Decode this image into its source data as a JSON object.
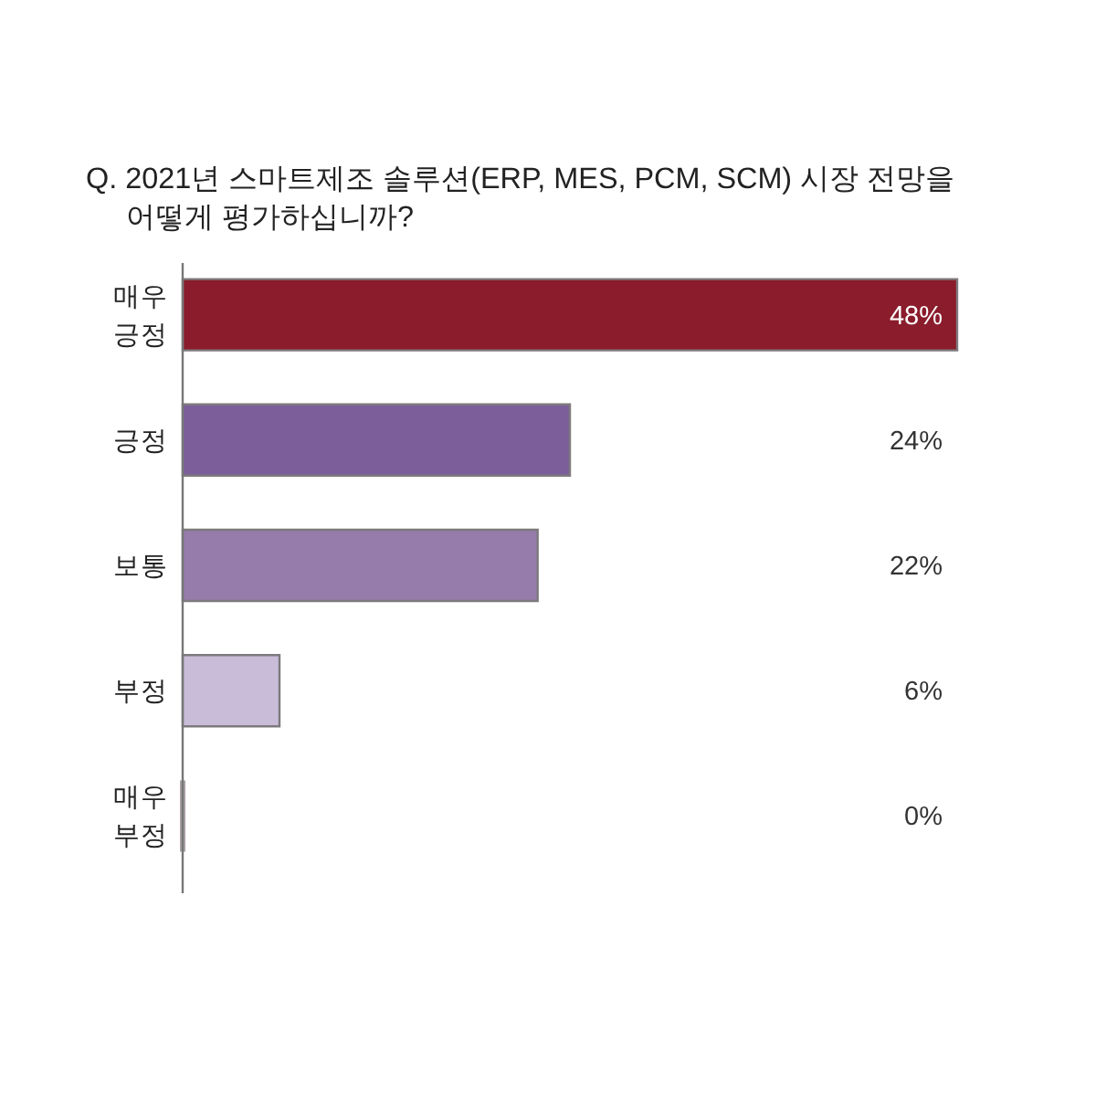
{
  "chart_data": {
    "type": "bar",
    "orientation": "horizontal",
    "title": "Q. 2021년 스마트제조 솔루션(ERP, MES, PCM, SCM) 시장 전망을\n어떻게 평가하십니까?",
    "categories": [
      "매우\n긍정",
      "긍정",
      "보통",
      "부정",
      "매우\n부정"
    ],
    "values": [
      48,
      24,
      22,
      6,
      0
    ],
    "colors": [
      "#8a1c2b",
      "#7b5e9a",
      "#957cab",
      "#c9bcd9",
      "#aaa2a8"
    ],
    "value_labels": [
      "48%",
      "24%",
      "22%",
      "6%",
      "0%"
    ]
  }
}
